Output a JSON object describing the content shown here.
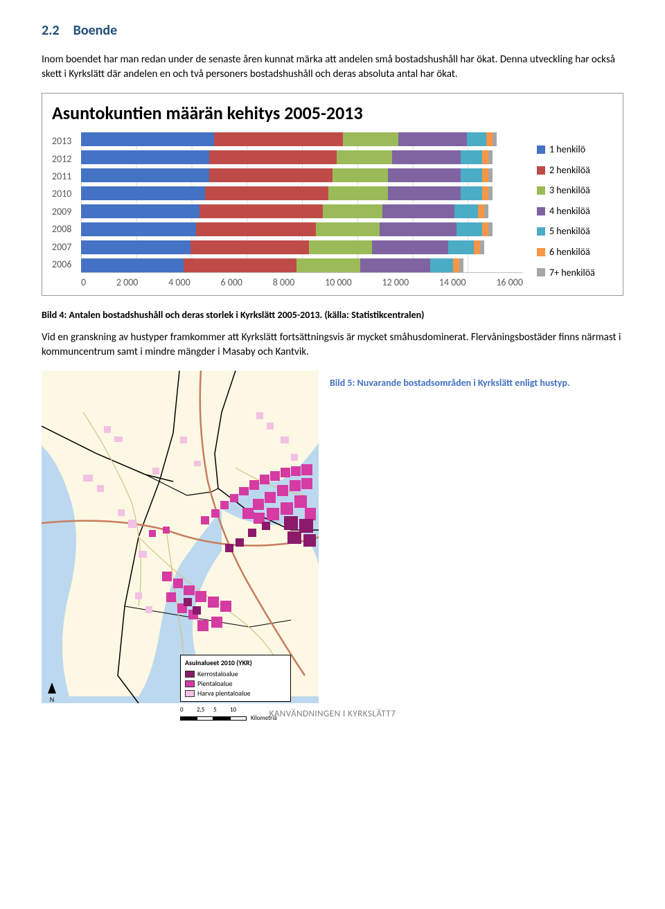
{
  "section": {
    "number": "2.2",
    "title": "Boende"
  },
  "para1": "Inom boendet har man redan under de senaste åren kunnat märka att andelen små bostadshushåll har ökat. Denna utveckling har också skett i Kyrkslätt där andelen en och två personers bostadshushåll och deras absoluta antal har ökat.",
  "chart": {
    "title": "Asuntokuntien määrän kehitys 2005-2013",
    "years": [
      "2013",
      "2012",
      "2011",
      "2010",
      "2009",
      "2008",
      "2007",
      "2006"
    ],
    "segments_colors": [
      "#4472c4",
      "#be4b48",
      "#9bbb59",
      "#8064a2",
      "#4bacc6",
      "#f79646",
      "#a6a6a6"
    ],
    "data": [
      {
        "widths": [
          31,
          30,
          13,
          16,
          4.5,
          1.5,
          1
        ],
        "total": 97
      },
      {
        "widths": [
          30,
          30,
          13,
          16,
          5,
          1.5,
          1
        ],
        "total": 96.5
      },
      {
        "widths": [
          30,
          29,
          13,
          17,
          5,
          1.5,
          1
        ],
        "total": 96.5
      },
      {
        "widths": [
          29,
          29,
          14,
          17,
          5,
          1.5,
          1
        ],
        "total": 96.5
      },
      {
        "widths": [
          28,
          29,
          14,
          17,
          5.5,
          1.5,
          1
        ],
        "total": 96
      },
      {
        "widths": [
          27,
          28,
          15,
          18,
          6,
          1.5,
          1
        ],
        "total": 96.5
      },
      {
        "widths": [
          26,
          28,
          15,
          18,
          6,
          1.5,
          1
        ],
        "total": 95.5
      },
      {
        "widths": [
          25,
          27.5,
          15.5,
          17,
          5.5,
          1.5,
          1
        ],
        "total": 93
      }
    ],
    "xticks": [
      "0",
      "2 000",
      "4 000",
      "6 000",
      "8 000",
      "10 000",
      "12 000",
      "14 000",
      "16 000"
    ],
    "legend": [
      "1 henkilö",
      "2 henkilöä",
      "3 henkilöä",
      "4 henkilöä",
      "5 henkilöä",
      "6 henkilöä",
      "7+ henkilöä"
    ]
  },
  "caption4": "Bild 4: Antalen bostadshushåll och deras storlek i Kyrkslätt 2005-2013. (källa: Statistikcentralen)",
  "para2": "Vid en granskning av hustyper framkommer att Kyrkslätt fortsättningsvis är mycket småhusdominerat. Flervåningsbostäder finns närmast i kommuncentrum samt i mindre mängder i Masaby och Kantvik.",
  "caption5": "Bild 5: Nuvarande bostadsområden i Kyrkslätt enligt hustyp.",
  "map": {
    "colors": {
      "water": "#bcd8ee",
      "land": "#fcf8e3",
      "border": "#000",
      "road_main": "#c97c5d",
      "road_minor": "#d4c089",
      "kerros": "#8b1a6b",
      "pientalo": "#d63aa3",
      "harva": "#f2c1e3"
    },
    "legend_title": "Asuinalueet 2010 (YKR)",
    "legend_items": [
      {
        "label": "Kerrostaloalue",
        "color": "#8b1a6b"
      },
      {
        "label": "Pientaloalue",
        "color": "#d63aa3"
      },
      {
        "label": "Harva pientaloalue",
        "color": "#f2c1e3"
      }
    ],
    "scale_labels": [
      "0",
      "2,5",
      "5",
      "10"
    ],
    "scale_unit": "Kilometriä"
  },
  "footer": "KANVÄNDNINGEN I KYRKSLÄTT7"
}
